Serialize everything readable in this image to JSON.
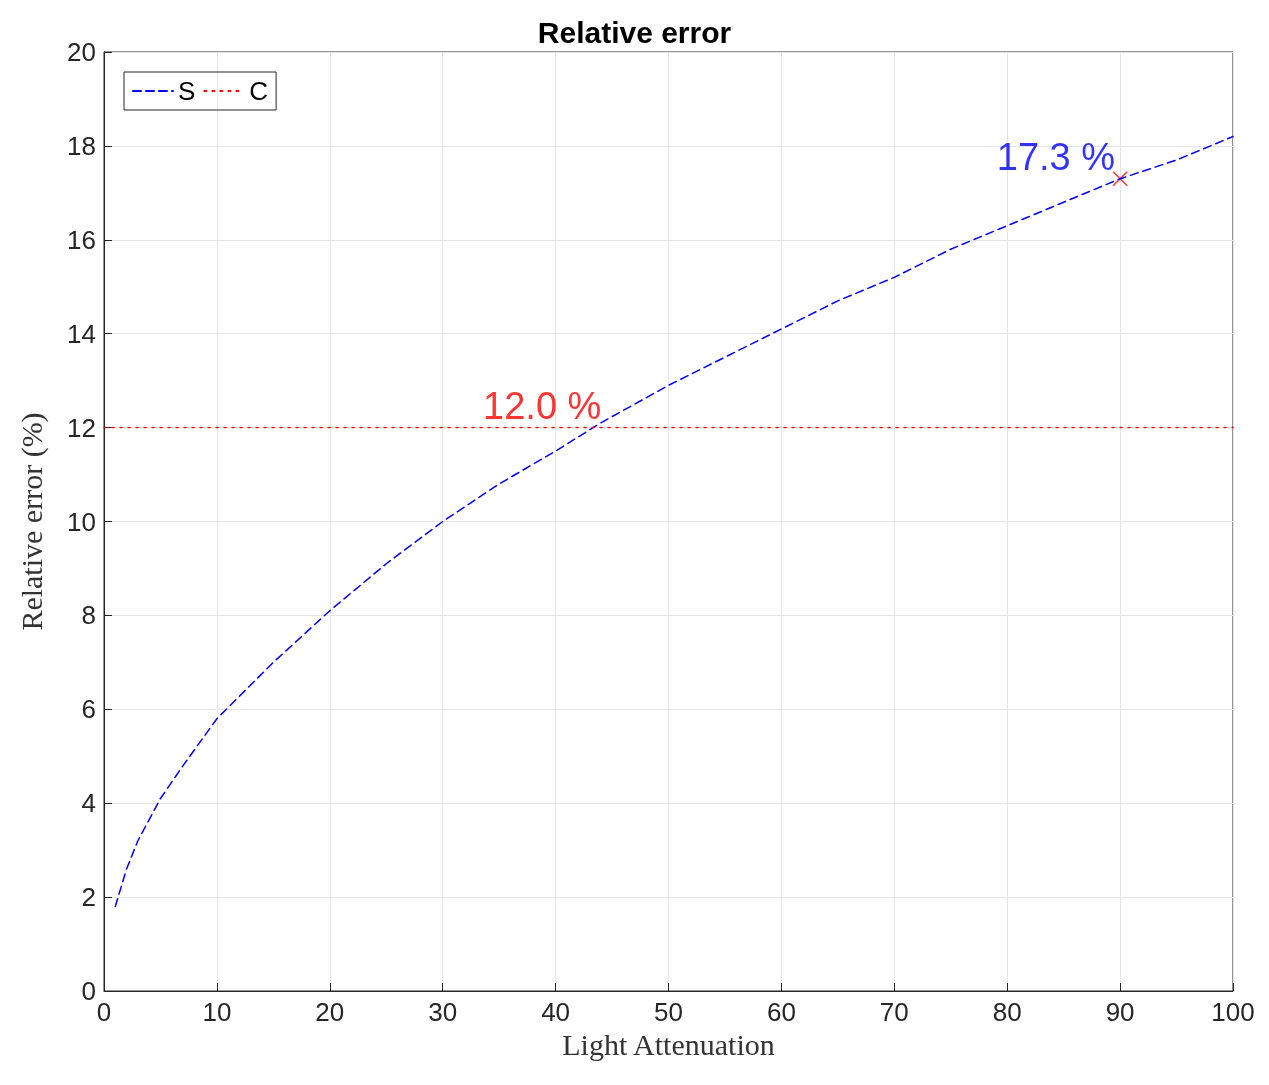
{
  "chart_data": {
    "type": "line",
    "title": "Relative error",
    "xlabel": "Light Attenuation",
    "ylabel": "Relative error (%)",
    "xlim": [
      0,
      100
    ],
    "xticks": [
      0,
      10,
      20,
      30,
      40,
      50,
      60,
      70,
      80,
      90,
      100
    ],
    "ylim": [
      0,
      20
    ],
    "yticks": [
      0,
      2,
      4,
      6,
      8,
      10,
      12,
      14,
      16,
      18,
      20
    ],
    "grid": true,
    "legend": "top left",
    "series": [
      {
        "name": "S",
        "color": "#0000ff",
        "line_style": "dashed",
        "marker": "none",
        "x": [
          1,
          2,
          3,
          5,
          7,
          10,
          15,
          20,
          25,
          30,
          35,
          40,
          44,
          50,
          55,
          60,
          65,
          70,
          75,
          80,
          85,
          90,
          95,
          100
        ],
        "values": [
          1.8,
          2.6,
          3.2,
          4.1,
          4.8,
          5.8,
          7.0,
          8.1,
          9.1,
          10.0,
          10.8,
          11.5,
          12.1,
          12.9,
          13.5,
          14.1,
          14.7,
          15.2,
          15.8,
          16.3,
          16.8,
          17.3,
          17.7,
          18.2
        ]
      },
      {
        "name": "C",
        "color": "#ff0000",
        "line_style": "dotted",
        "marker": "none",
        "x": [
          0,
          100
        ],
        "values": [
          12.0,
          12.0
        ]
      },
      {
        "type": "scatter",
        "color": "#ff0000",
        "marker": "cross",
        "x": [
          90
        ],
        "values": [
          17.3
        ]
      }
    ],
    "annotations": [
      {
        "text": "12.0 %",
        "x": 44.5,
        "y": 12.0
      },
      {
        "text": "17.3 %",
        "x": 90,
        "y": 17.3
      }
    ]
  }
}
